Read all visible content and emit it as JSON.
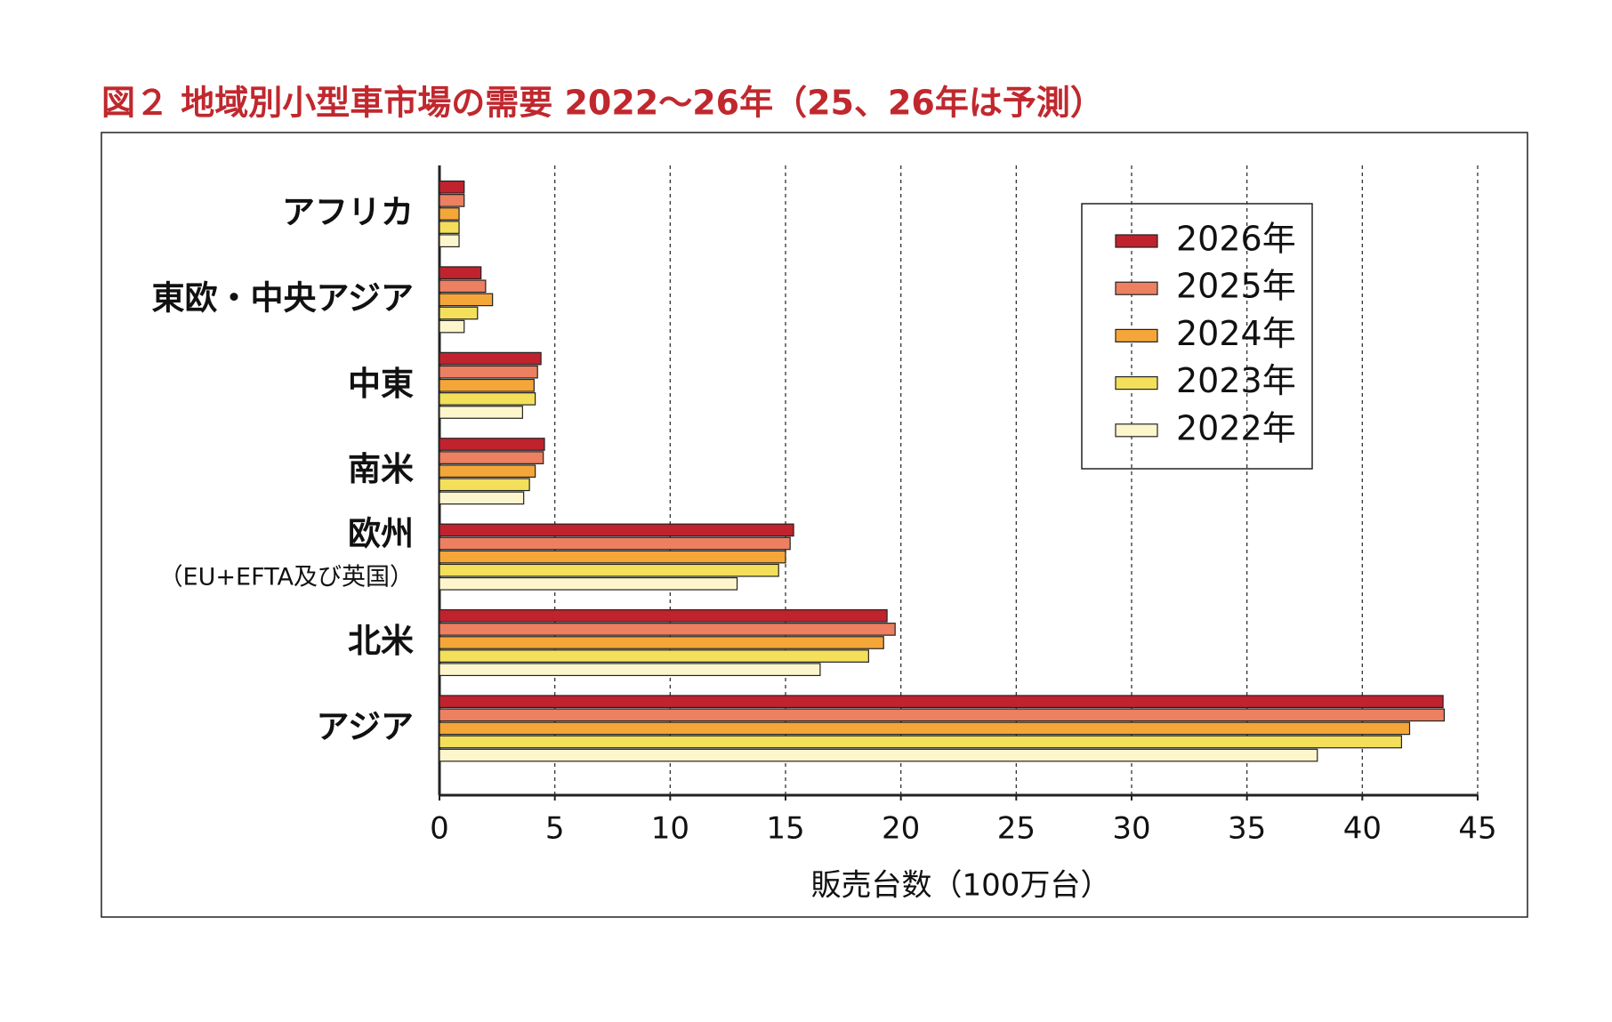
{
  "chart_data": {
    "type": "bar",
    "orientation": "horizontal",
    "title": "図２ 地域別小型車市場の需要 2022～26年（25、26年は予測）",
    "x_label": "販売台数（100万台）",
    "categories": [
      "アフリカ",
      "東欧・中央アジア",
      "中東",
      "南米",
      "欧州",
      "北米",
      "アジア"
    ],
    "category_sublabels": [
      null,
      null,
      null,
      null,
      "（EU+EFTA及び英国）",
      null,
      null
    ],
    "series": [
      {
        "name": "2026年",
        "color": "#c0222e",
        "values": [
          1.07,
          1.8,
          4.4,
          4.55,
          15.35,
          19.4,
          43.5
        ]
      },
      {
        "name": "2025年",
        "color": "#ec8060",
        "values": [
          1.07,
          2.0,
          4.25,
          4.5,
          15.2,
          19.75,
          43.55
        ]
      },
      {
        "name": "2024年",
        "color": "#f5a638",
        "values": [
          0.85,
          2.3,
          4.1,
          4.15,
          15.0,
          19.25,
          42.05
        ]
      },
      {
        "name": "2023年",
        "color": "#f3df5a",
        "values": [
          0.85,
          1.65,
          4.15,
          3.9,
          14.7,
          18.6,
          41.7
        ]
      },
      {
        "name": "2022年",
        "color": "#fdf6cc",
        "values": [
          0.85,
          1.07,
          3.6,
          3.65,
          12.9,
          16.5,
          38.05
        ]
      }
    ],
    "xlim": [
      0,
      45
    ],
    "xticks": [
      0,
      5,
      10,
      15,
      20,
      25,
      30,
      35,
      40,
      45
    ],
    "grid": true,
    "legend": "upper right",
    "title_color": "#c0282e"
  }
}
